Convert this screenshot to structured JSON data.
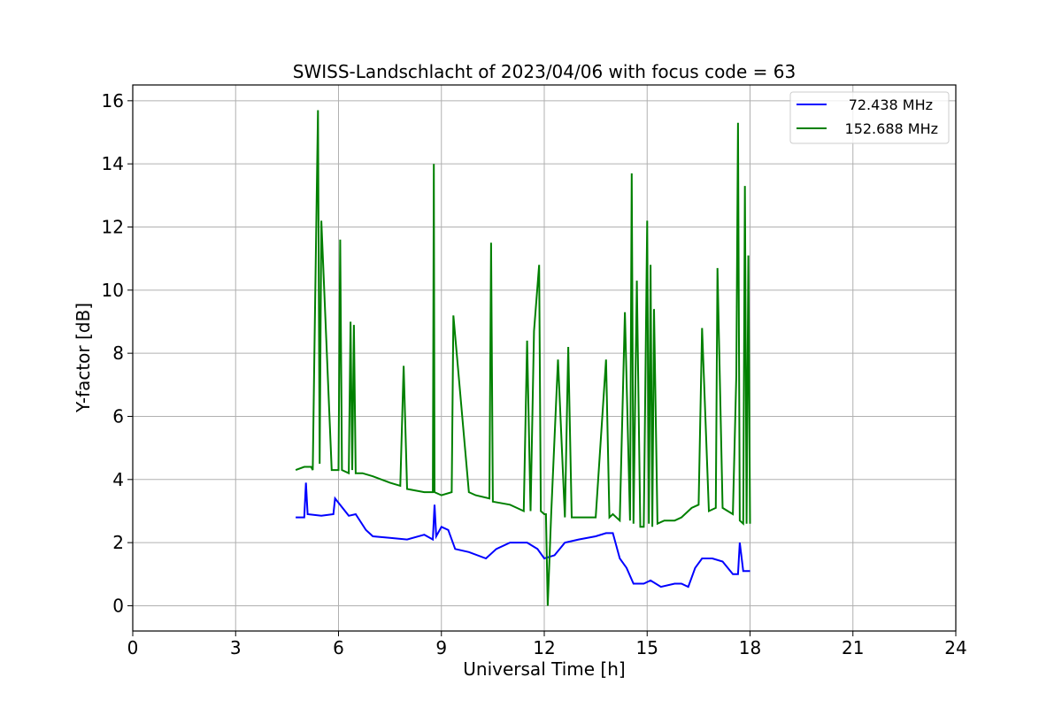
{
  "chart_data": {
    "type": "line",
    "title": "SWISS-Landschlacht of 2023/04/06 with focus code = 63",
    "xlabel": "Universal Time [h]",
    "ylabel": "Y-factor [dB]",
    "xlim": [
      0,
      24
    ],
    "ylim": [
      -0.8,
      16.5
    ],
    "xticks": [
      0,
      3,
      6,
      9,
      12,
      15,
      18,
      21,
      24
    ],
    "yticks": [
      0,
      2,
      4,
      6,
      8,
      10,
      12,
      14,
      16
    ],
    "grid": true,
    "legend_position": "top-right",
    "series": [
      {
        "name": "72.438 MHz",
        "color": "#0000ff",
        "x": [
          4.75,
          5.0,
          5.05,
          5.1,
          5.5,
          5.85,
          5.9,
          6.3,
          6.5,
          6.8,
          7.0,
          7.5,
          8.0,
          8.5,
          8.75,
          8.8,
          8.85,
          9.0,
          9.2,
          9.4,
          9.8,
          10.3,
          10.6,
          11.0,
          11.5,
          11.8,
          12.0,
          12.3,
          12.6,
          13.0,
          13.5,
          13.8,
          14.0,
          14.2,
          14.4,
          14.6,
          14.9,
          15.1,
          15.4,
          15.8,
          16.0,
          16.2,
          16.4,
          16.6,
          16.9,
          17.2,
          17.5,
          17.65,
          17.7,
          17.8,
          18.0
        ],
        "y": [
          2.8,
          2.8,
          3.9,
          2.9,
          2.85,
          2.9,
          3.4,
          2.85,
          2.9,
          2.4,
          2.2,
          2.15,
          2.1,
          2.25,
          2.1,
          3.2,
          2.2,
          2.5,
          2.4,
          1.8,
          1.7,
          1.5,
          1.8,
          2.0,
          2.0,
          1.8,
          1.5,
          1.6,
          2.0,
          2.1,
          2.2,
          2.3,
          2.3,
          1.5,
          1.2,
          0.7,
          0.7,
          0.8,
          0.6,
          0.7,
          0.7,
          0.6,
          1.2,
          1.5,
          1.5,
          1.4,
          1.0,
          1.0,
          2.0,
          1.1,
          1.1
        ]
      },
      {
        "name": "152.688 MHz",
        "color": "#008000",
        "x": [
          4.75,
          5.0,
          5.2,
          5.25,
          5.3,
          5.4,
          5.45,
          5.5,
          5.8,
          6.0,
          6.05,
          6.1,
          6.3,
          6.35,
          6.4,
          6.45,
          6.5,
          6.7,
          7.0,
          7.5,
          7.8,
          7.9,
          8.0,
          8.5,
          8.75,
          8.78,
          8.8,
          9.0,
          9.3,
          9.35,
          9.8,
          10.0,
          10.4,
          10.45,
          10.5,
          11.0,
          11.2,
          11.4,
          11.5,
          11.6,
          11.7,
          11.85,
          11.9,
          12.0,
          12.05,
          12.1,
          12.2,
          12.4,
          12.6,
          12.7,
          12.8,
          13.0,
          13.3,
          13.5,
          13.8,
          13.9,
          14.0,
          14.2,
          14.35,
          14.5,
          14.55,
          14.6,
          14.7,
          14.8,
          14.9,
          15.0,
          15.05,
          15.1,
          15.15,
          15.2,
          15.3,
          15.5,
          15.8,
          16.0,
          16.3,
          16.5,
          16.6,
          16.8,
          17.0,
          17.05,
          17.2,
          17.5,
          17.6,
          17.65,
          17.7,
          17.8,
          17.85,
          17.9,
          17.95,
          18.0
        ],
        "y": [
          4.3,
          4.4,
          4.4,
          4.3,
          8.3,
          15.7,
          4.5,
          12.2,
          4.3,
          4.3,
          11.6,
          4.3,
          4.2,
          9.0,
          4.3,
          8.9,
          4.2,
          4.2,
          4.1,
          3.9,
          3.8,
          7.6,
          3.7,
          3.6,
          3.6,
          14.0,
          3.6,
          3.5,
          3.6,
          9.2,
          3.6,
          3.5,
          3.4,
          11.5,
          3.3,
          3.2,
          3.1,
          3.0,
          8.4,
          3.0,
          8.7,
          10.8,
          3.0,
          2.9,
          2.9,
          0.0,
          2.9,
          7.8,
          2.8,
          8.2,
          2.8,
          2.8,
          2.8,
          2.8,
          7.8,
          2.8,
          2.9,
          2.7,
          9.3,
          2.7,
          13.7,
          2.6,
          10.3,
          2.5,
          2.5,
          12.2,
          2.6,
          10.8,
          2.5,
          9.4,
          2.6,
          2.7,
          2.7,
          2.8,
          3.1,
          3.2,
          8.8,
          3.0,
          3.1,
          10.7,
          3.1,
          2.9,
          7.3,
          15.3,
          2.7,
          2.6,
          13.3,
          2.6,
          11.1,
          2.6
        ]
      }
    ]
  }
}
